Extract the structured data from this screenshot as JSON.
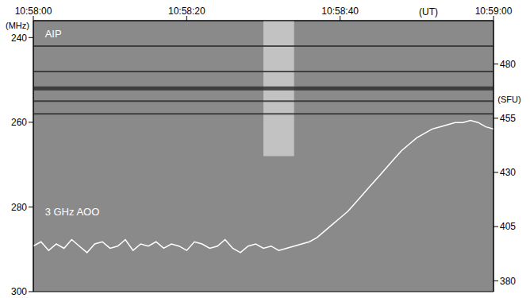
{
  "chart_data": {
    "type": "line",
    "xlabel": "(UT)",
    "ylabel": "(MHz)",
    "y2label": "(SFU)",
    "x": [
      0,
      1,
      2,
      3,
      4,
      5,
      6,
      7,
      8,
      9,
      10,
      11,
      12,
      13,
      14,
      15,
      16,
      17,
      18,
      19,
      20,
      21,
      22,
      23,
      24,
      25,
      26,
      27,
      28,
      29,
      30,
      31,
      32,
      33,
      34,
      35,
      36,
      37,
      38,
      39,
      40,
      41,
      42,
      43,
      44,
      45,
      46,
      47,
      48,
      49,
      50,
      51,
      52,
      53,
      54,
      55,
      56,
      57,
      58,
      59,
      60
    ],
    "series": [
      {
        "name": "3 GHz  AOO",
        "color": "#ffffff",
        "axis": "y2",
        "values": [
          396,
          398,
          394,
          397,
          395,
          399,
          396,
          393,
          397,
          398,
          395,
          396,
          399,
          394,
          397,
          396,
          398,
          395,
          397,
          396,
          394,
          398,
          397,
          395,
          396,
          399,
          395,
          393,
          396,
          397,
          395,
          396,
          394,
          395,
          396,
          397,
          398,
          400,
          403,
          406,
          409,
          412,
          416,
          420,
          424,
          428,
          432,
          436,
          440,
          443,
          446,
          448,
          450,
          451,
          452,
          453,
          453,
          454,
          453,
          451,
          450
        ]
      }
    ],
    "xlim": [
      0,
      60
    ],
    "xticks": [
      {
        "value": 0,
        "label": "10:58:00"
      },
      {
        "value": 20,
        "label": "10:58:20"
      },
      {
        "value": 40,
        "label": "10:58:40"
      },
      {
        "value": 60,
        "label": "10:59:00"
      }
    ],
    "ylim": [
      236,
      300
    ],
    "yticks": [
      240,
      260,
      280,
      300
    ],
    "y2lim": [
      375,
      500
    ],
    "y2ticks": [
      380,
      405,
      430,
      455,
      480
    ],
    "grid": false,
    "dark_bands": [
      242,
      248,
      252,
      255,
      258
    ],
    "burst": {
      "x": [
        30,
        34
      ],
      "y": [
        236,
        268
      ]
    },
    "annotations": [
      {
        "text": "AIP",
        "x": 1,
        "y": 239,
        "axis": "y"
      },
      {
        "text": "3 GHz  AOO",
        "x": 1,
        "y": 412,
        "axis": "y2"
      }
    ]
  }
}
